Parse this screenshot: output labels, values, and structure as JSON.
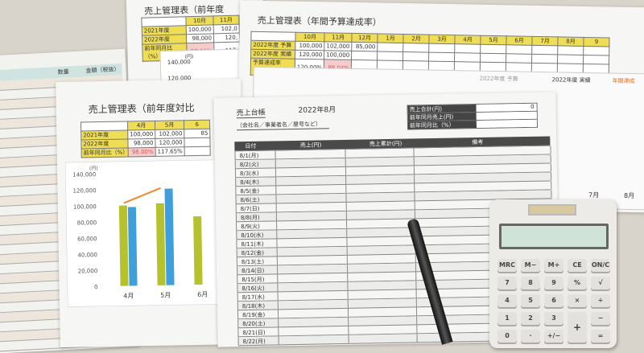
{
  "left_sheet": {
    "columns": [
      "数量",
      "金額（税抜）"
    ]
  },
  "top_mid_sheet": {
    "title": "売上管理表（前年度",
    "months": [
      "10月",
      "11月"
    ],
    "rows": [
      {
        "label": "2021年度",
        "values": [
          "100,000",
          "102,0"
        ]
      },
      {
        "label": "2022年度",
        "values": [
          "98,000",
          "120,"
        ]
      },
      {
        "label": "前年同月比（%）",
        "values": [
          "98.00%",
          "117."
        ]
      }
    ],
    "y_ticks": [
      "(円)",
      "140,000",
      "120,000"
    ]
  },
  "top_right_sheet": {
    "title": "売上管理表（年間予算達成率）",
    "months": [
      "10月",
      "11月",
      "12月",
      "1月",
      "2月",
      "3月",
      "4月",
      "5月",
      "6月",
      "7月",
      "8月",
      "9"
    ],
    "rows": [
      {
        "label": "2022年度 予算",
        "values": [
          "100,000",
          "102,000",
          "85,000"
        ]
      },
      {
        "label": "2022年度 実績",
        "values": [
          "120,000",
          "100,000"
        ]
      },
      {
        "label": "予算達成率（%）",
        "values": [
          "120.00%",
          "98.04%"
        ]
      }
    ],
    "legend": [
      "2022年度 予算",
      "2022年度 実績",
      "年間達成"
    ],
    "x_labels": [
      "7月",
      "8月"
    ]
  },
  "front_sheet": {
    "title": "売上管理表（前年度対比",
    "months": [
      "4月",
      "5月",
      "6"
    ],
    "rows": [
      {
        "label": "2021年度",
        "values": [
          "100,000",
          "102,000",
          "85"
        ]
      },
      {
        "label": "2022年度",
        "values": [
          "98,000",
          "120,000",
          ""
        ]
      },
      {
        "label": "前年同月比（%）",
        "values": [
          "98.00%",
          "117.65%",
          ""
        ]
      }
    ],
    "chart": {
      "unit": "(円)",
      "y_ticks": [
        "140,000",
        "120,000",
        "100,000",
        "80,000",
        "60,000",
        "40,000",
        "20,000",
        "0"
      ],
      "categories": [
        "4月",
        "5月",
        "6月"
      ],
      "series_2021": [
        100000,
        102000,
        85000
      ],
      "series_2022": [
        98000,
        120000,
        null
      ],
      "colors": {
        "2021": "#b5c22e",
        "2022": "#3f9fdc",
        "line": "#f08a30"
      }
    }
  },
  "ledger": {
    "title": "売上台帳",
    "period": "2022年8月",
    "company": "（会社名／事業者名／屋号など）",
    "summary": [
      {
        "label": "売上合計(円)",
        "value": "0"
      },
      {
        "label": "前年同月売上(円)",
        "value": ""
      },
      {
        "label": "前年同月比（%）",
        "value": ""
      }
    ],
    "headers": [
      "日付",
      "売上(円)",
      "売上累計(円)",
      "備考"
    ],
    "dates": [
      "8/1(月)",
      "8/2(火)",
      "8/3(水)",
      "8/4(木)",
      "8/5(金)",
      "8/6(土)",
      "8/7(日)",
      "8/8(月)",
      "8/9(火)",
      "8/10(水)",
      "8/11(木)",
      "8/12(金)",
      "8/13(土)",
      "8/14(日)",
      "8/15(月)",
      "8/16(火)",
      "8/17(水)",
      "8/18(木)",
      "8/19(金)",
      "8/20(土)",
      "8/21(日)",
      "8/22(月)"
    ]
  },
  "calculator": {
    "keys": [
      [
        "MRC",
        "M−",
        "M+",
        "CE",
        "ON/C"
      ],
      [
        "7",
        "8",
        "9",
        "%",
        "√"
      ],
      [
        "4",
        "5",
        "6",
        "×",
        "÷"
      ],
      [
        "1",
        "2",
        "3",
        "+",
        "−"
      ],
      [
        "0",
        "·",
        "+/−",
        "",
        "="
      ]
    ]
  }
}
